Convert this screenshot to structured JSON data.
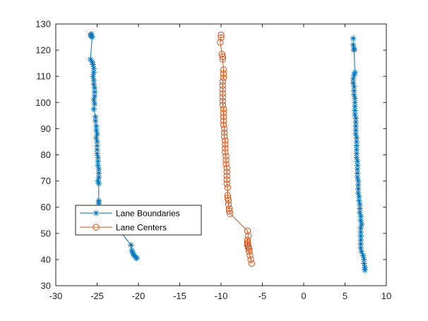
{
  "chart_data": {
    "type": "line",
    "xlim": [
      -30,
      10
    ],
    "ylim": [
      30,
      130
    ],
    "xticks": [
      -30,
      -25,
      -20,
      -15,
      -10,
      -5,
      0,
      5,
      10
    ],
    "yticks": [
      30,
      40,
      50,
      60,
      70,
      80,
      90,
      100,
      110,
      120,
      130
    ],
    "grid": false,
    "legend_position": "lower-left",
    "series": [
      {
        "name": "Lane Boundaries",
        "color": "#0072BD",
        "marker": "asterisk",
        "segments": [
          [
            [
              -25.7,
              126.2
            ],
            [
              -25.8,
              125.8
            ],
            [
              -25.7,
              125.4
            ],
            [
              -25.6,
              125.0
            ],
            [
              -25.8,
              116.5
            ],
            [
              -25.6,
              115.5
            ],
            [
              -25.5,
              114.5
            ],
            [
              -25.4,
              113.0
            ],
            [
              -25.4,
              111.5
            ],
            [
              -25.5,
              110.0
            ],
            [
              -25.4,
              108.5
            ],
            [
              -25.4,
              107.0
            ],
            [
              -25.3,
              105.5
            ],
            [
              -25.3,
              104.0
            ],
            [
              -25.3,
              102.5
            ],
            [
              -25.4,
              101.0
            ],
            [
              -25.3,
              99.5
            ],
            [
              -25.4,
              97.5
            ],
            [
              -25.2,
              94.5
            ],
            [
              -25.2,
              93.0
            ],
            [
              -25.1,
              91.0
            ],
            [
              -25.1,
              89.5
            ],
            [
              -25.0,
              88.0
            ],
            [
              -25.1,
              86.5
            ],
            [
              -25.0,
              85.0
            ],
            [
              -25.0,
              83.5
            ],
            [
              -25.0,
              82.0
            ],
            [
              -25.0,
              80.5
            ],
            [
              -24.9,
              79.0
            ],
            [
              -24.9,
              77.5
            ],
            [
              -24.9,
              76.0
            ],
            [
              -24.8,
              74.5
            ],
            [
              -24.8,
              73.0
            ],
            [
              -24.8,
              71.5
            ],
            [
              -24.9,
              70.0
            ],
            [
              -24.8,
              69.0
            ],
            [
              -24.8,
              62.5
            ],
            [
              -24.8,
              61.5
            ],
            [
              -20.9,
              45.5
            ],
            [
              -20.8,
              43.5
            ],
            [
              -20.7,
              42.5
            ],
            [
              -20.6,
              42.0
            ],
            [
              -20.5,
              41.5
            ],
            [
              -20.3,
              40.8
            ],
            [
              -20.2,
              40.5
            ]
          ],
          [
            [
              6.0,
              124.5
            ],
            [
              6.0,
              122.0
            ],
            [
              6.1,
              120.5
            ],
            [
              6.1,
              120.0
            ],
            [
              6.2,
              111.5
            ],
            [
              6.1,
              110.5
            ],
            [
              6.0,
              109.0
            ],
            [
              6.0,
              107.5
            ],
            [
              6.1,
              106.0
            ],
            [
              6.1,
              104.5
            ],
            [
              6.1,
              103.0
            ],
            [
              6.2,
              101.5
            ],
            [
              6.2,
              100.0
            ],
            [
              6.2,
              98.5
            ],
            [
              6.2,
              97.0
            ],
            [
              6.2,
              95.5
            ],
            [
              6.3,
              94.0
            ],
            [
              6.3,
              92.5
            ],
            [
              6.3,
              91.0
            ],
            [
              6.3,
              89.5
            ],
            [
              6.3,
              88.0
            ],
            [
              6.4,
              86.5
            ],
            [
              6.4,
              85.0
            ],
            [
              6.4,
              83.5
            ],
            [
              6.4,
              82.0
            ],
            [
              6.4,
              80.5
            ],
            [
              6.4,
              79.0
            ],
            [
              6.5,
              77.5
            ],
            [
              6.5,
              76.0
            ],
            [
              6.5,
              74.5
            ],
            [
              6.5,
              73.0
            ],
            [
              6.5,
              71.5
            ],
            [
              6.6,
              70.0
            ],
            [
              6.6,
              68.5
            ],
            [
              6.6,
              67.0
            ],
            [
              6.6,
              65.5
            ],
            [
              6.7,
              64.0
            ],
            [
              6.7,
              62.5
            ],
            [
              6.8,
              61.0
            ],
            [
              6.8,
              59.5
            ],
            [
              6.8,
              58.0
            ],
            [
              6.9,
              56.5
            ],
            [
              6.9,
              55.0
            ],
            [
              7.0,
              53.5
            ],
            [
              6.9,
              52.0
            ],
            [
              6.9,
              50.5
            ],
            [
              6.9,
              49.0
            ],
            [
              6.9,
              47.5
            ],
            [
              6.9,
              46.0
            ],
            [
              6.9,
              44.5
            ],
            [
              7.0,
              43.0
            ],
            [
              7.2,
              41.5
            ],
            [
              7.3,
              40.0
            ],
            [
              7.3,
              38.5
            ],
            [
              7.4,
              37.0
            ],
            [
              7.4,
              36.0
            ]
          ]
        ]
      },
      {
        "name": "Lane Centers",
        "color": "#D95319",
        "marker": "circle",
        "segments": [
          [
            [
              -10.0,
              125.8
            ],
            [
              -10.0,
              124.8
            ],
            [
              -10.1,
              123.0
            ],
            [
              -9.9,
              118.5
            ],
            [
              -9.8,
              117.5
            ],
            [
              -9.8,
              116.5
            ],
            [
              -9.7,
              112.5
            ],
            [
              -9.7,
              111.0
            ],
            [
              -9.7,
              109.5
            ],
            [
              -9.8,
              108.0
            ],
            [
              -9.8,
              106.5
            ],
            [
              -9.8,
              105.0
            ],
            [
              -9.8,
              103.5
            ],
            [
              -9.8,
              102.0
            ],
            [
              -9.8,
              100.5
            ],
            [
              -9.8,
              99.0
            ],
            [
              -9.7,
              97.5
            ],
            [
              -9.7,
              96.0
            ],
            [
              -9.7,
              94.5
            ],
            [
              -9.7,
              93.0
            ],
            [
              -9.7,
              91.5
            ],
            [
              -9.6,
              90.0
            ],
            [
              -9.6,
              88.5
            ],
            [
              -9.6,
              87.0
            ],
            [
              -9.5,
              85.5
            ],
            [
              -9.5,
              84.0
            ],
            [
              -9.5,
              82.5
            ],
            [
              -9.5,
              81.0
            ],
            [
              -9.4,
              79.5
            ],
            [
              -9.4,
              78.0
            ],
            [
              -9.4,
              76.5
            ],
            [
              -9.3,
              75.0
            ],
            [
              -9.3,
              73.5
            ],
            [
              -9.3,
              72.0
            ],
            [
              -9.3,
              70.5
            ],
            [
              -9.3,
              69.0
            ],
            [
              -9.2,
              67.5
            ],
            [
              -9.2,
              64.5
            ],
            [
              -9.2,
              63.5
            ],
            [
              -9.1,
              62.5
            ],
            [
              -9.1,
              61.0
            ],
            [
              -9.0,
              59.5
            ],
            [
              -9.0,
              58.5
            ],
            [
              -8.9,
              57.5
            ],
            [
              -6.8,
              51.0
            ],
            [
              -6.7,
              49.0
            ],
            [
              -6.8,
              47.5
            ],
            [
              -6.8,
              46.5
            ],
            [
              -6.8,
              46.0
            ],
            [
              -6.8,
              45.5
            ],
            [
              -6.7,
              45.0
            ],
            [
              -6.7,
              44.5
            ],
            [
              -6.6,
              44.0
            ],
            [
              -6.6,
              43.0
            ],
            [
              -6.5,
              41.5
            ],
            [
              -6.4,
              40.0
            ],
            [
              -6.3,
              38.5
            ]
          ]
        ]
      }
    ]
  }
}
